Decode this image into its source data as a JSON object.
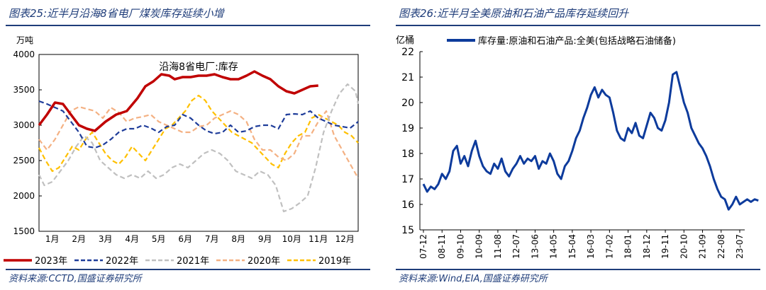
{
  "colors": {
    "accent": "#1f3d7a"
  },
  "panels": [
    {
      "title": "图表25:近半月沿海8省电厂煤炭库存延续小增",
      "source": "资料来源:CCTD,国盛证券研究所"
    },
    {
      "title": "图表26:近半月全美原油和石油产品库存延续回升",
      "source": "资料来源:Wind,EIA,国盛证券研究所"
    }
  ],
  "chart_data": [
    {
      "type": "line",
      "title": "沿海8省电厂:库存",
      "ylabel": "万吨",
      "ylim": [
        1500,
        4000
      ],
      "yticks": [
        1500,
        2000,
        2500,
        3000,
        3500,
        4000
      ],
      "categories": [
        "1月",
        "2月",
        "3月",
        "4月",
        "5月",
        "6月",
        "7月",
        "8月",
        "9月",
        "10月",
        "11月",
        "12月"
      ],
      "legend_position": "bottom",
      "series": [
        {
          "name": "2023年",
          "color": "#c00000",
          "style": "solid",
          "x": [
            1,
            1.3,
            1.6,
            1.9,
            2.2,
            2.5,
            2.8,
            3.1,
            3.5,
            3.9,
            4.3,
            4.7,
            5,
            5.3,
            5.6,
            5.9,
            6.1,
            6.4,
            6.7,
            7,
            7.3,
            7.6,
            7.9,
            8.2,
            8.5,
            8.8,
            9.1,
            9.4,
            9.7,
            10,
            10.3,
            10.6,
            10.9,
            11.2,
            11.5
          ],
          "y": [
            3000,
            3150,
            3320,
            3300,
            3150,
            3000,
            2950,
            2920,
            3050,
            3150,
            3200,
            3380,
            3550,
            3620,
            3720,
            3700,
            3650,
            3680,
            3680,
            3700,
            3700,
            3720,
            3680,
            3650,
            3650,
            3700,
            3760,
            3700,
            3650,
            3550,
            3480,
            3450,
            3500,
            3550,
            3560
          ]
        },
        {
          "name": "2022年",
          "color": "#1f3d9a",
          "style": "dash",
          "x": [
            1,
            1.3,
            1.6,
            1.9,
            2.2,
            2.5,
            2.8,
            3.1,
            3.4,
            3.7,
            4,
            4.3,
            4.6,
            4.9,
            5.2,
            5.5,
            5.8,
            6.1,
            6.4,
            6.7,
            7,
            7.3,
            7.6,
            7.9,
            8.2,
            8.5,
            8.8,
            9.1,
            9.4,
            9.7,
            10,
            10.3,
            10.6,
            10.9,
            11.2,
            11.5,
            11.8,
            12.1,
            12.4,
            12.7,
            13
          ],
          "y": [
            3340,
            3300,
            3250,
            3200,
            3050,
            2900,
            2700,
            2680,
            2720,
            2800,
            2900,
            2950,
            2950,
            3000,
            2960,
            2900,
            2980,
            3000,
            3150,
            3100,
            3000,
            2920,
            2880,
            2900,
            3000,
            2900,
            2920,
            2980,
            3000,
            3000,
            2950,
            3150,
            3160,
            3150,
            3200,
            3100,
            3050,
            3000,
            2980,
            2960,
            3050
          ]
        },
        {
          "name": "2021年",
          "color": "#c0c0c0",
          "style": "dash",
          "x": [
            1,
            1.2,
            1.5,
            1.8,
            2.1,
            2.4,
            2.7,
            3,
            3.3,
            3.6,
            3.9,
            4.2,
            4.5,
            4.8,
            5.1,
            5.4,
            5.7,
            6,
            6.3,
            6.6,
            6.9,
            7.2,
            7.5,
            7.8,
            8.1,
            8.4,
            8.7,
            9,
            9.3,
            9.6,
            9.9,
            10.2,
            10.5,
            10.8,
            11.1,
            11.4,
            11.7,
            12,
            12.3,
            12.6,
            12.9,
            13
          ],
          "y": [
            2300,
            2150,
            2200,
            2350,
            2500,
            2700,
            2850,
            2750,
            2500,
            2400,
            2300,
            2250,
            2300,
            2250,
            2350,
            2250,
            2300,
            2400,
            2450,
            2400,
            2500,
            2600,
            2650,
            2600,
            2500,
            2350,
            2300,
            2250,
            2350,
            2300,
            2150,
            1780,
            1820,
            1900,
            2000,
            2400,
            2900,
            3200,
            3450,
            3580,
            3480,
            3300
          ]
        },
        {
          "name": "2020年",
          "color": "#f4b183",
          "style": "dash",
          "x": [
            1,
            1.3,
            1.6,
            1.9,
            2.2,
            2.5,
            2.8,
            3.1,
            3.4,
            3.7,
            4,
            4.3,
            4.6,
            4.9,
            5.2,
            5.5,
            5.8,
            6.1,
            6.4,
            6.7,
            7,
            7.3,
            7.6,
            7.9,
            8.2,
            8.5,
            8.8,
            9.1,
            9.4,
            9.7,
            10,
            10.3,
            10.6,
            10.9,
            11.2,
            11.5,
            11.8,
            12.1,
            12.4,
            12.7,
            13
          ],
          "y": [
            2800,
            2650,
            2800,
            3000,
            3200,
            3260,
            3230,
            3200,
            3100,
            3250,
            3180,
            3050,
            3100,
            3120,
            3150,
            3050,
            3000,
            2950,
            2900,
            2900,
            2980,
            3000,
            3100,
            3150,
            3200,
            3150,
            3050,
            2800,
            2650,
            2650,
            2550,
            2500,
            2600,
            2850,
            2850,
            3050,
            3200,
            2850,
            2650,
            2450,
            2250
          ]
        },
        {
          "name": "2019年",
          "color": "#ffc000",
          "style": "dash",
          "x": [
            1,
            1.25,
            1.5,
            1.75,
            2,
            2.25,
            2.5,
            2.75,
            3,
            3.25,
            3.5,
            3.75,
            4,
            4.25,
            4.5,
            4.75,
            5,
            5.25,
            5.5,
            5.75,
            6,
            6.25,
            6.5,
            6.75,
            7,
            7.25,
            7.5,
            7.75,
            8,
            8.25,
            8.5,
            8.75,
            9,
            9.25,
            9.5,
            9.75,
            10,
            10.25,
            10.5,
            10.75,
            11,
            11.25,
            11.5,
            11.75,
            12,
            12.25,
            12.5,
            12.75,
            13
          ],
          "y": [
            2680,
            2500,
            2350,
            2400,
            2550,
            2700,
            2650,
            2800,
            2900,
            2750,
            2600,
            2500,
            2450,
            2550,
            2700,
            2600,
            2500,
            2650,
            2800,
            2950,
            3000,
            3100,
            3200,
            3350,
            3420,
            3350,
            3200,
            3100,
            3000,
            2900,
            2850,
            2800,
            2750,
            2650,
            2550,
            2450,
            2400,
            2600,
            2750,
            2850,
            2900,
            3100,
            3150,
            3100,
            3050,
            3000,
            2900,
            2850,
            2750
          ]
        }
      ]
    },
    {
      "type": "line",
      "title": "",
      "ylabel": "亿桶",
      "ylim": [
        15,
        22
      ],
      "yticks": [
        15,
        16,
        17,
        18,
        19,
        20,
        21,
        22
      ],
      "xticks": [
        "07-12",
        "08-11",
        "09-10",
        "10-09",
        "11-08",
        "12-07",
        "13-06",
        "14-05",
        "15-04",
        "16-03",
        "17-02",
        "18-01",
        "18-12",
        "19-11",
        "20-10",
        "21-09",
        "22-08",
        "23-07"
      ],
      "legend_position": "top",
      "series": [
        {
          "name": "库存量:原油和石油产品:全美(包括战略石油储备)",
          "color": "#0d3b9c",
          "style": "solid",
          "x": [
            0,
            0.2,
            0.4,
            0.6,
            0.8,
            1,
            1.2,
            1.4,
            1.6,
            1.8,
            2,
            2.2,
            2.4,
            2.6,
            2.8,
            3,
            3.2,
            3.4,
            3.6,
            3.8,
            4,
            4.2,
            4.4,
            4.6,
            4.8,
            5,
            5.2,
            5.4,
            5.6,
            5.8,
            6,
            6.2,
            6.4,
            6.6,
            6.8,
            7,
            7.2,
            7.4,
            7.6,
            7.8,
            8,
            8.2,
            8.4,
            8.6,
            8.8,
            9,
            9.2,
            9.4,
            9.6,
            9.8,
            10,
            10.2,
            10.4,
            10.6,
            10.8,
            11,
            11.2,
            11.4,
            11.6,
            11.8,
            12,
            12.2,
            12.4,
            12.6,
            12.8,
            13,
            13.2,
            13.4,
            13.6,
            13.8,
            14,
            14.2,
            14.4,
            14.6,
            14.8,
            15,
            15.2,
            15.4,
            15.6,
            15.8,
            16,
            16.2,
            16.4,
            16.6,
            16.8,
            17,
            17.2,
            17.4,
            17.6,
            17.8,
            18
          ],
          "y": [
            16.8,
            16.5,
            16.7,
            16.6,
            16.8,
            17.2,
            17.0,
            17.3,
            18.1,
            18.3,
            17.6,
            17.9,
            17.5,
            18.1,
            18.5,
            17.9,
            17.5,
            17.3,
            17.2,
            17.6,
            17.4,
            17.8,
            17.3,
            17.1,
            17.4,
            17.6,
            17.9,
            17.6,
            17.8,
            17.7,
            17.9,
            17.4,
            17.7,
            17.6,
            18.0,
            17.7,
            17.2,
            17.0,
            17.5,
            17.7,
            18.1,
            18.6,
            18.9,
            19.4,
            19.8,
            20.3,
            20.6,
            20.2,
            20.5,
            20.3,
            20.2,
            19.6,
            18.9,
            18.6,
            18.5,
            19.0,
            18.8,
            19.2,
            18.7,
            18.6,
            19.1,
            19.6,
            19.4,
            19.0,
            18.9,
            19.3,
            20.0,
            21.1,
            21.2,
            20.6,
            20.0,
            19.6,
            19.0,
            18.7,
            18.4,
            18.2,
            17.9,
            17.5,
            17.0,
            16.6,
            16.3,
            16.2,
            15.8,
            16.0,
            16.3,
            16.0,
            16.1,
            16.2,
            16.1,
            16.2,
            16.15
          ]
        }
      ]
    }
  ]
}
